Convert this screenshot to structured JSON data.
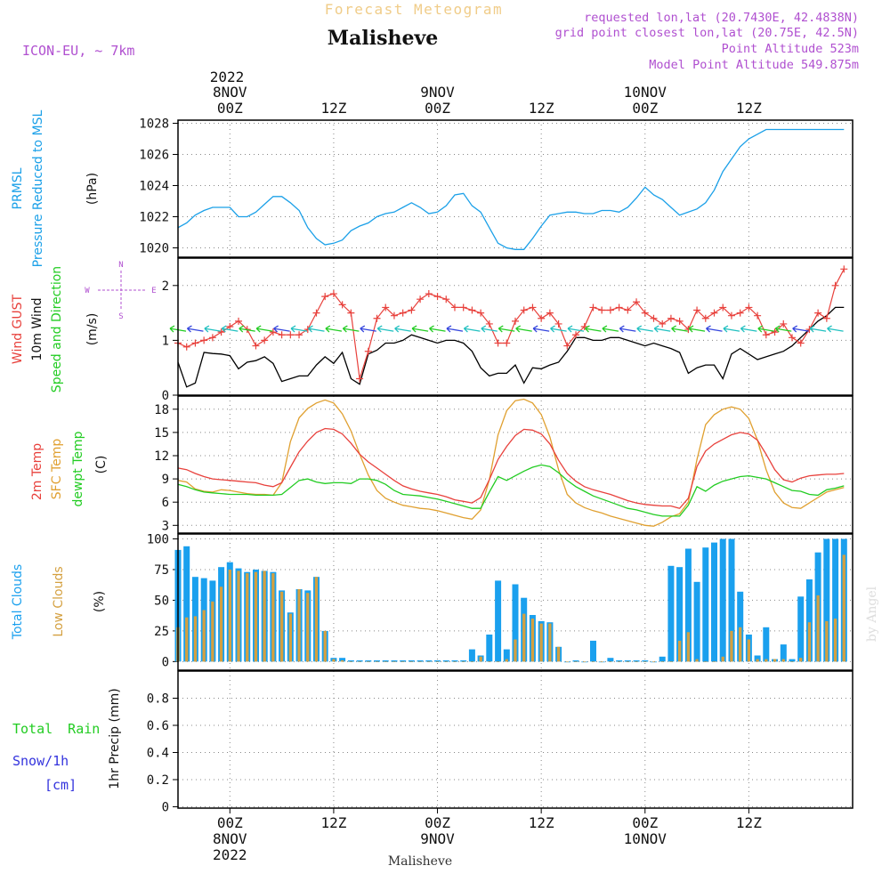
{
  "header": {
    "product_title": "Forecast Meteogram",
    "location": "Malisheve",
    "model": "ICON-EU, ~ 7km",
    "requested": "requested lon,lat (20.7430E, 42.4838N)",
    "grid_point": "grid point closest lon,lat (20.75E, 42.5N)",
    "point_altitude": "Point Altitude 523m",
    "model_altitude": "Model Point Altitude 549.875m",
    "footer_location": "Malisheve",
    "credit": "by Angel"
  },
  "time_axis": {
    "top_year": "2022",
    "ticks": [
      {
        "hour": 6,
        "top": [
          "8NOV",
          "00Z"
        ],
        "bottom": [
          "00Z",
          "8NOV",
          "2022"
        ]
      },
      {
        "hour": 18,
        "top": [
          "12Z"
        ],
        "bottom": [
          "12Z"
        ]
      },
      {
        "hour": 30,
        "top": [
          "9NOV",
          "00Z"
        ],
        "bottom": [
          "00Z",
          "9NOV"
        ]
      },
      {
        "hour": 42,
        "top": [
          "12Z"
        ],
        "bottom": [
          "12Z"
        ]
      },
      {
        "hour": 54,
        "top": [
          "10NOV",
          "00Z"
        ],
        "bottom": [
          "00Z",
          "10NOV"
        ]
      },
      {
        "hour": 66,
        "top": [
          "12Z"
        ],
        "bottom": [
          "12Z"
        ]
      }
    ],
    "range_hours": [
      0,
      78
    ]
  },
  "colors": {
    "pressure": "#1ba0e8",
    "gust": "#e8413c",
    "wind": "#000000",
    "wind_dir": "#22cc22",
    "temp2m": "#e8413c",
    "sfc": "#e0a030",
    "dewpt": "#22cc22",
    "total_clouds": "#1aa0ee",
    "low_clouds": "#d4a040",
    "rain": "#22cc22",
    "snow": "#3333dd",
    "purple": "#b050d0"
  },
  "chart_data": [
    {
      "type": "line",
      "panel": "pressure",
      "labels": [
        "PRMSL",
        "Pressure Reduced to MSL",
        "(hPa)"
      ],
      "ylim": [
        1019.4,
        1028.2
      ],
      "yticks": [
        1020,
        1022,
        1024,
        1026,
        1028
      ],
      "x": [
        0,
        1,
        2,
        3,
        4,
        5,
        6,
        7,
        8,
        9,
        10,
        11,
        12,
        13,
        14,
        15,
        16,
        17,
        18,
        19,
        20,
        21,
        22,
        23,
        24,
        25,
        26,
        27,
        28,
        29,
        30,
        31,
        32,
        33,
        34,
        35,
        36,
        37,
        38,
        39,
        40,
        41,
        42,
        43,
        44,
        45,
        46,
        47,
        48,
        49,
        50,
        51,
        52,
        53,
        54,
        55,
        56,
        57,
        58,
        59,
        60,
        61,
        62,
        63,
        64,
        65,
        66,
        67,
        68,
        69,
        70,
        71,
        72,
        73,
        74,
        75,
        76,
        77
      ],
      "series": [
        {
          "name": "PRMSL",
          "values": [
            1021.3,
            1021.6,
            1022.1,
            1022.4,
            1022.6,
            1022.6,
            1022.6,
            1022.0,
            1022.0,
            1022.3,
            1022.8,
            1023.3,
            1023.3,
            1022.9,
            1022.4,
            1021.3,
            1020.6,
            1020.2,
            1020.3,
            1020.5,
            1021.1,
            1021.4,
            1021.6,
            1022.0,
            1022.2,
            1022.3,
            1022.6,
            1022.9,
            1022.6,
            1022.2,
            1022.3,
            1022.7,
            1023.4,
            1023.5,
            1022.7,
            1022.3,
            1021.3,
            1020.3,
            1020.0,
            1019.9,
            1019.9,
            1020.6,
            1021.4,
            1022.1,
            1022.2,
            1022.3,
            1022.3,
            1022.2,
            1022.2,
            1022.4,
            1022.4,
            1022.3,
            1022.6,
            1023.2,
            1023.9,
            1023.4,
            1023.1,
            1022.6,
            1022.1,
            1022.3,
            1022.5,
            1022.9,
            1023.7,
            1024.9,
            1025.7,
            1026.5,
            1027.0,
            1027.3,
            1027.6,
            1027.6,
            1027.6,
            1027.6,
            1027.6,
            1027.6,
            1027.6,
            1027.6,
            1027.6,
            1027.6
          ]
        }
      ]
    },
    {
      "type": "line",
      "panel": "wind",
      "labels": [
        "Wind GUST",
        "10m Wind",
        "Speed and Direction",
        "(m/s)"
      ],
      "compass": {
        "n": "N",
        "w": "W",
        "e": "E",
        "s": "S"
      },
      "ylim": [
        0,
        2.5
      ],
      "yticks": [
        0,
        1,
        2
      ],
      "x": [
        0,
        1,
        2,
        3,
        4,
        5,
        6,
        7,
        8,
        9,
        10,
        11,
        12,
        13,
        14,
        15,
        16,
        17,
        18,
        19,
        20,
        21,
        22,
        23,
        24,
        25,
        26,
        27,
        28,
        29,
        30,
        31,
        32,
        33,
        34,
        35,
        36,
        37,
        38,
        39,
        40,
        41,
        42,
        43,
        44,
        45,
        46,
        47,
        48,
        49,
        50,
        51,
        52,
        53,
        54,
        55,
        56,
        57,
        58,
        59,
        60,
        61,
        62,
        63,
        64,
        65,
        66,
        67,
        68,
        69,
        70,
        71,
        72,
        73,
        74,
        75,
        76,
        77
      ],
      "series": [
        {
          "name": "Wind GUST",
          "values": [
            0.95,
            0.88,
            0.95,
            1.0,
            1.05,
            1.15,
            1.25,
            1.35,
            1.2,
            0.9,
            1.0,
            1.15,
            1.1,
            1.1,
            1.1,
            1.2,
            1.5,
            1.8,
            1.85,
            1.65,
            1.5,
            0.3,
            0.8,
            1.4,
            1.6,
            1.45,
            1.5,
            1.55,
            1.75,
            1.85,
            1.8,
            1.75,
            1.6,
            1.6,
            1.55,
            1.5,
            1.3,
            0.95,
            0.95,
            1.35,
            1.55,
            1.6,
            1.4,
            1.5,
            1.3,
            0.9,
            1.1,
            1.25,
            1.6,
            1.55,
            1.55,
            1.6,
            1.55,
            1.7,
            1.5,
            1.4,
            1.3,
            1.4,
            1.35,
            1.2,
            1.55,
            1.4,
            1.5,
            1.6,
            1.45,
            1.5,
            1.6,
            1.45,
            1.1,
            1.15,
            1.3,
            1.05,
            0.95,
            1.2,
            1.5,
            1.4,
            2.0,
            2.3
          ]
        },
        {
          "name": "10m Wind",
          "values": [
            0.6,
            0.15,
            0.22,
            0.78,
            0.76,
            0.75,
            0.72,
            0.48,
            0.6,
            0.63,
            0.7,
            0.58,
            0.25,
            0.3,
            0.35,
            0.35,
            0.55,
            0.7,
            0.58,
            0.78,
            0.3,
            0.2,
            0.75,
            0.82,
            0.95,
            0.95,
            1.0,
            1.1,
            1.05,
            1.0,
            0.95,
            1.0,
            1.0,
            0.95,
            0.8,
            0.5,
            0.35,
            0.4,
            0.4,
            0.55,
            0.22,
            0.5,
            0.48,
            0.55,
            0.6,
            0.8,
            1.05,
            1.05,
            1.0,
            1.0,
            1.05,
            1.05,
            1.0,
            0.95,
            0.9,
            0.95,
            0.9,
            0.85,
            0.78,
            0.4,
            0.5,
            0.55,
            0.55,
            0.3,
            0.75,
            0.85,
            0.75,
            0.65,
            0.7,
            0.75,
            0.8,
            0.9,
            1.05,
            1.2,
            1.35,
            1.45,
            1.6,
            1.6
          ]
        }
      ]
    },
    {
      "type": "line",
      "panel": "temperature",
      "labels": [
        "2m Temp",
        "SFC Temp",
        "dewpt Temp",
        "(C)"
      ],
      "ylim": [
        2,
        19.7
      ],
      "yticks": [
        3,
        6,
        9,
        12,
        15,
        18
      ],
      "x": [
        0,
        1,
        2,
        3,
        4,
        5,
        6,
        7,
        8,
        9,
        10,
        11,
        12,
        13,
        14,
        15,
        16,
        17,
        18,
        19,
        20,
        21,
        22,
        23,
        24,
        25,
        26,
        27,
        28,
        29,
        30,
        31,
        32,
        33,
        34,
        35,
        36,
        37,
        38,
        39,
        40,
        41,
        42,
        43,
        44,
        45,
        46,
        47,
        48,
        49,
        50,
        51,
        52,
        53,
        54,
        55,
        56,
        57,
        58,
        59,
        60,
        61,
        62,
        63,
        64,
        65,
        66,
        67,
        68,
        69,
        70,
        71,
        72,
        73,
        74,
        75,
        76,
        77
      ],
      "series": [
        {
          "name": "2m Temp",
          "values": [
            10.4,
            10.2,
            9.7,
            9.3,
            9.0,
            8.9,
            8.8,
            8.7,
            8.6,
            8.5,
            8.2,
            8.0,
            8.5,
            10.5,
            12.5,
            13.9,
            15.0,
            15.5,
            15.4,
            14.8,
            13.6,
            12.2,
            11.2,
            10.4,
            9.6,
            8.8,
            8.1,
            7.7,
            7.4,
            7.2,
            7.0,
            6.7,
            6.3,
            6.1,
            5.9,
            6.6,
            8.9,
            11.5,
            13.2,
            14.6,
            15.4,
            15.3,
            14.8,
            13.5,
            11.4,
            9.7,
            8.7,
            8.0,
            7.6,
            7.3,
            7.0,
            6.6,
            6.2,
            5.9,
            5.7,
            5.6,
            5.5,
            5.5,
            5.2,
            6.5,
            10.6,
            12.6,
            13.5,
            14.1,
            14.7,
            15.0,
            14.8,
            14.0,
            12.2,
            10.2,
            8.9,
            8.6,
            9.1,
            9.4,
            9.5,
            9.6,
            9.6,
            9.7
          ]
        },
        {
          "name": "SFC Temp",
          "values": [
            8.8,
            8.6,
            7.7,
            7.4,
            7.3,
            7.6,
            7.5,
            7.3,
            7.1,
            7.0,
            7.0,
            6.9,
            8.5,
            13.8,
            16.9,
            18.1,
            18.8,
            19.2,
            18.8,
            17.4,
            15.2,
            12.2,
            9.5,
            7.5,
            6.5,
            6.0,
            5.6,
            5.4,
            5.2,
            5.1,
            4.9,
            4.6,
            4.3,
            4.0,
            3.8,
            5.0,
            8.9,
            14.7,
            17.8,
            19.1,
            19.3,
            18.8,
            17.3,
            14.4,
            10.2,
            7.0,
            5.9,
            5.3,
            4.9,
            4.6,
            4.2,
            3.9,
            3.6,
            3.3,
            3.0,
            2.9,
            3.4,
            4.1,
            4.5,
            6.0,
            11.5,
            16.0,
            17.3,
            18.0,
            18.3,
            18.0,
            16.8,
            14.0,
            10.2,
            7.3,
            5.9,
            5.3,
            5.2,
            5.9,
            6.6,
            7.3,
            7.6,
            7.9
          ]
        },
        {
          "name": "dewpt Temp",
          "values": [
            8.3,
            8.0,
            7.6,
            7.3,
            7.2,
            7.1,
            7.0,
            7.0,
            7.0,
            6.9,
            6.9,
            6.9,
            7.0,
            7.9,
            8.8,
            9.0,
            8.6,
            8.4,
            8.5,
            8.5,
            8.4,
            9.0,
            9.0,
            8.8,
            8.3,
            7.5,
            7.0,
            6.9,
            6.8,
            6.6,
            6.4,
            6.1,
            5.8,
            5.5,
            5.2,
            5.2,
            7.3,
            9.3,
            8.8,
            9.4,
            10.0,
            10.5,
            10.8,
            10.6,
            9.8,
            8.8,
            8.0,
            7.4,
            6.8,
            6.4,
            6.0,
            5.6,
            5.2,
            5.0,
            4.7,
            4.4,
            4.2,
            4.2,
            4.2,
            5.6,
            8.0,
            7.4,
            8.2,
            8.7,
            9.0,
            9.3,
            9.4,
            9.2,
            9.0,
            8.5,
            8.0,
            7.5,
            7.4,
            7.0,
            6.9,
            7.6,
            7.8,
            8.1
          ]
        }
      ]
    },
    {
      "type": "bar",
      "panel": "clouds",
      "labels": [
        "Total Clouds",
        "Low Clouds",
        "(%)"
      ],
      "ylim": [
        -7,
        104
      ],
      "yticks": [
        0,
        25,
        50,
        75,
        100
      ],
      "x": [
        0,
        1,
        2,
        3,
        4,
        5,
        6,
        7,
        8,
        9,
        10,
        11,
        12,
        13,
        14,
        15,
        16,
        17,
        18,
        19,
        20,
        21,
        22,
        23,
        24,
        25,
        26,
        27,
        28,
        29,
        30,
        31,
        32,
        33,
        34,
        35,
        36,
        37,
        38,
        39,
        40,
        41,
        42,
        43,
        44,
        45,
        46,
        47,
        48,
        49,
        50,
        51,
        52,
        53,
        54,
        55,
        56,
        57,
        58,
        59,
        60,
        61,
        62,
        63,
        64,
        65,
        66,
        67,
        68,
        69,
        70,
        71,
        72,
        73,
        74,
        75,
        76,
        77
      ],
      "series": [
        {
          "name": "Total Clouds",
          "values": [
            91,
            94,
            69,
            68,
            66,
            77,
            81,
            76,
            73,
            75,
            74,
            73,
            58,
            40,
            59,
            58,
            69,
            25,
            3,
            3,
            1,
            1,
            1,
            1,
            1,
            1,
            1,
            1,
            1,
            1,
            1,
            1,
            1,
            1,
            10,
            5,
            22,
            66,
            10,
            63,
            52,
            38,
            33,
            32,
            12,
            0,
            1,
            0,
            17,
            0,
            3,
            1,
            1,
            1,
            1,
            0,
            4,
            78,
            77,
            92,
            65,
            93,
            97,
            100,
            100,
            57,
            22,
            5,
            28,
            2,
            14,
            2,
            53,
            67,
            89,
            100,
            100,
            100
          ]
        },
        {
          "name": "Low Clouds",
          "values": [
            28,
            36,
            37,
            42,
            49,
            61,
            75,
            74,
            72,
            73,
            74,
            72,
            57,
            39,
            59,
            56,
            69,
            25,
            2,
            1,
            0,
            0,
            0,
            0,
            0,
            0,
            0,
            0,
            0,
            0,
            0,
            0,
            0,
            0,
            0,
            4,
            0,
            0,
            2,
            18,
            39,
            35,
            31,
            31,
            12,
            0,
            0,
            0,
            0,
            0,
            0,
            0,
            0,
            0,
            0,
            0,
            0,
            0,
            17,
            24,
            2,
            0,
            0,
            4,
            25,
            28,
            18,
            2,
            2,
            2,
            2,
            0,
            3,
            32,
            54,
            33,
            35,
            87
          ]
        }
      ]
    },
    {
      "type": "bar",
      "panel": "precip",
      "labels": [
        "Total Rain",
        "Snow/1h",
        "[cm]",
        "1hr Precip (mm)"
      ],
      "ylim": [
        -0.01,
        1.0
      ],
      "yticks": [
        0,
        0.2,
        0.4,
        0.6,
        0.8
      ],
      "x": [],
      "series": [
        {
          "name": "Total Rain",
          "values": []
        }
      ]
    }
  ]
}
